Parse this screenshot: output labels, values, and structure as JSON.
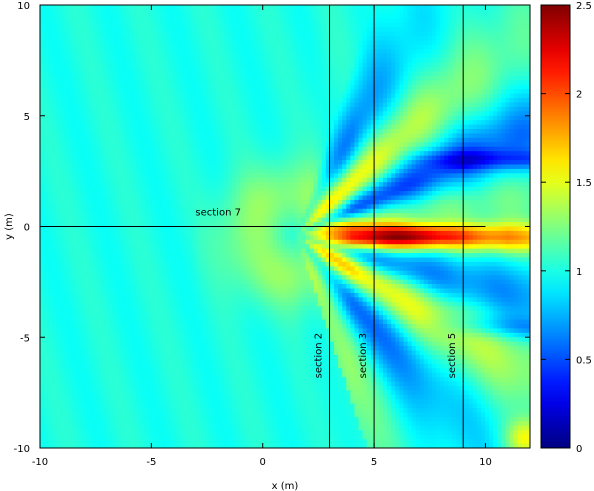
{
  "chart_data": {
    "type": "heatmap",
    "xlabel": "x (m)",
    "ylabel": "y (m)",
    "xlim": [
      -10,
      12
    ],
    "ylim": [
      -10,
      10
    ],
    "xticks": [
      "-10",
      "-5",
      "0",
      "5",
      "10"
    ],
    "xtick_values": [
      -10,
      -5,
      0,
      5,
      10
    ],
    "yticks": [
      "-10",
      "-5",
      "0",
      "5",
      "10"
    ],
    "ytick_values": [
      -10,
      -5,
      0,
      5,
      10
    ],
    "colorbar": {
      "range": [
        0,
        2.5
      ],
      "ticks": [
        "0",
        "0.5",
        "1",
        "1.5",
        "2",
        "2.5"
      ],
      "tick_values": [
        0,
        0.5,
        1,
        1.5,
        2,
        2.5
      ],
      "colormap": "jet"
    },
    "grid": false,
    "sections": [
      {
        "label": "section 7",
        "orientation": "horizontal",
        "y": 0,
        "x_range": [
          -10,
          10
        ],
        "label_x": -2,
        "label_y": 0.4
      },
      {
        "label": "section 2",
        "orientation": "vertical",
        "x": 3,
        "y_range": [
          -10,
          10
        ],
        "label_x": 2.5,
        "label_y": -4.8
      },
      {
        "label": "section 3",
        "orientation": "vertical",
        "x": 5,
        "y_range": [
          -10,
          10
        ],
        "label_x": 4.5,
        "label_y": -4.8
      },
      {
        "label": "section 5",
        "orientation": "vertical",
        "x": 9,
        "y_range": [
          -10,
          10
        ],
        "label_x": 8.5,
        "label_y": -4.8
      }
    ],
    "field_description": [
      {
        "feature": "background",
        "value": 1.0
      },
      {
        "feature": "focus_peak",
        "x": 6.5,
        "y": -0.4,
        "value": 2.5
      },
      {
        "feature": "dark_band_upper",
        "x": 10.5,
        "y": 3.0,
        "value": 0.1
      },
      {
        "feature": "dark_band_lower",
        "x": 11.0,
        "y": -5.0,
        "value": 0.2
      }
    ]
  }
}
